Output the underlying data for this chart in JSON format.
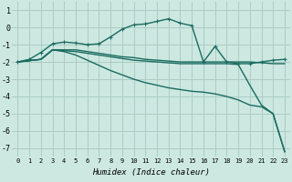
{
  "xlabel": "Humidex (Indice chaleur)",
  "bg_color": "#cce8e0",
  "grid_color": "#aaccc4",
  "line_color": "#1a6b60",
  "xlim": [
    -0.5,
    23.5
  ],
  "ylim": [
    -7.5,
    1.5
  ],
  "yticks": [
    1,
    0,
    -1,
    -2,
    -3,
    -4,
    -5,
    -6,
    -7
  ],
  "xticks": [
    0,
    1,
    2,
    3,
    4,
    5,
    6,
    7,
    8,
    9,
    10,
    11,
    12,
    13,
    14,
    15,
    16,
    17,
    18,
    19,
    20,
    21,
    22,
    23
  ],
  "series": [
    {
      "x": [
        0,
        1,
        2,
        3,
        4,
        5,
        6,
        7,
        8,
        9,
        10,
        11,
        12,
        13,
        14,
        15,
        16,
        17,
        18,
        19,
        20,
        21,
        22,
        23
      ],
      "y": [
        -2.0,
        -1.85,
        -1.45,
        -0.95,
        -0.85,
        -0.9,
        -1.0,
        -0.95,
        -0.55,
        -0.1,
        0.15,
        0.2,
        0.35,
        0.5,
        0.25,
        0.1,
        -2.0,
        -1.1,
        -2.0,
        -2.1,
        -2.1,
        -2.0,
        -1.9,
        -1.85
      ],
      "marker": true,
      "lw": 1.0
    },
    {
      "x": [
        0,
        2,
        3,
        4,
        5,
        6,
        7,
        8,
        9,
        10,
        11,
        12,
        13,
        14,
        15,
        16,
        17,
        18,
        19,
        20,
        21,
        22,
        23
      ],
      "y": [
        -2.0,
        -1.85,
        -1.3,
        -1.3,
        -1.3,
        -1.4,
        -1.5,
        -1.6,
        -1.7,
        -1.75,
        -1.85,
        -1.9,
        -1.95,
        -2.0,
        -2.0,
        -2.0,
        -2.0,
        -2.0,
        -2.0,
        -2.0,
        -2.05,
        -2.1,
        -2.1
      ],
      "marker": false,
      "lw": 1.0
    },
    {
      "x": [
        0,
        2,
        3,
        4,
        5,
        6,
        7,
        8,
        9,
        10,
        11,
        12,
        13,
        14,
        15,
        16,
        17,
        18,
        19,
        20,
        21,
        22,
        23
      ],
      "y": [
        -2.0,
        -1.85,
        -1.3,
        -1.4,
        -1.6,
        -1.9,
        -2.2,
        -2.5,
        -2.75,
        -3.0,
        -3.2,
        -3.35,
        -3.5,
        -3.6,
        -3.7,
        -3.75,
        -3.85,
        -4.0,
        -4.2,
        -4.5,
        -4.6,
        -5.0,
        -7.2
      ],
      "marker": false,
      "lw": 1.0
    },
    {
      "x": [
        0,
        2,
        3,
        4,
        5,
        6,
        7,
        8,
        9,
        10,
        11,
        12,
        13,
        14,
        15,
        16,
        17,
        18,
        19,
        20,
        21,
        22,
        23
      ],
      "y": [
        -2.0,
        -1.85,
        -1.3,
        -1.35,
        -1.4,
        -1.5,
        -1.6,
        -1.7,
        -1.8,
        -1.9,
        -1.95,
        -2.0,
        -2.05,
        -2.1,
        -2.1,
        -2.1,
        -2.1,
        -2.1,
        -2.15,
        -3.35,
        -4.5,
        -5.0,
        -7.2
      ],
      "marker": false,
      "lw": 1.0
    }
  ]
}
